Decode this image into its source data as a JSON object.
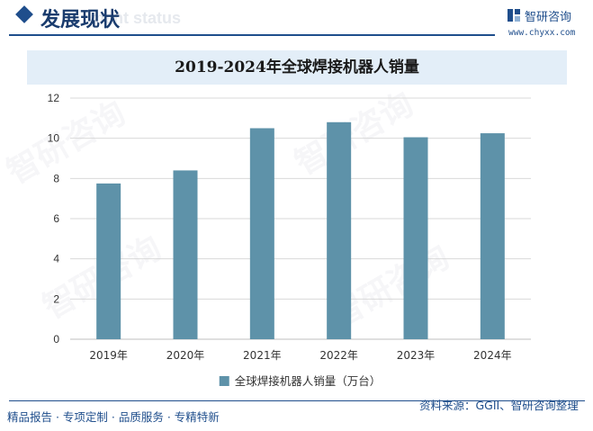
{
  "header": {
    "section_title": "发展现状",
    "section_title_en": "ment status",
    "brand_name": "智研咨询",
    "brand_url": "www.chyxx.com"
  },
  "footer": {
    "left_text": "精品报告 · 专项定制 · 品质服务 · 专精特新",
    "source": "资料来源：GGII、智研咨询整理"
  },
  "watermark": "智研咨询",
  "colors": {
    "bar": "#5e92a9",
    "accent": "#1f4e8c"
  },
  "chart_data": {
    "type": "bar",
    "title": "2019-2024年全球焊接机器人销量",
    "categories": [
      "2019年",
      "2020年",
      "2021年",
      "2022年",
      "2023年",
      "2024年"
    ],
    "series": [
      {
        "name": "全球焊接机器人销量（万台）",
        "values": [
          7.75,
          8.4,
          10.5,
          10.8,
          10.05,
          10.25
        ]
      }
    ],
    "ylim": [
      0,
      12
    ],
    "yticks": [
      0,
      2,
      4,
      6,
      8,
      10,
      12
    ],
    "grid": true,
    "legend": "bottom"
  }
}
